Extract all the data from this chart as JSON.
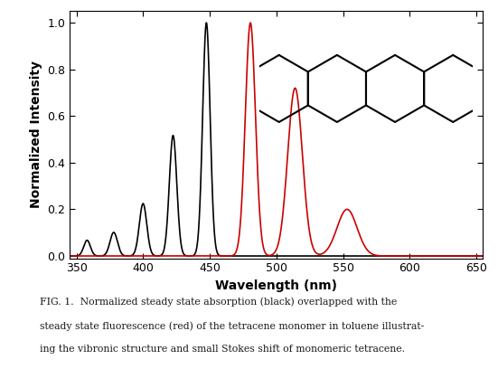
{
  "title": "",
  "xlabel": "Wavelength (nm)",
  "ylabel": "Normalized Intensity",
  "xlim": [
    345,
    655
  ],
  "ylim": [
    -0.01,
    1.05
  ],
  "xticks": [
    350,
    400,
    450,
    500,
    550,
    600,
    650
  ],
  "yticks": [
    0.0,
    0.2,
    0.4,
    0.6,
    0.8,
    1.0
  ],
  "black_color": "#000000",
  "red_color": "#cc0000",
  "figsize": [
    5.51,
    4.08
  ],
  "dpi": 100,
  "abs_peaks": [
    {
      "mu": 447.5,
      "sigma": 2.8,
      "amp": 0.89
    },
    {
      "mu": 422.5,
      "sigma": 2.8,
      "amp": 0.46
    },
    {
      "mu": 400.0,
      "sigma": 2.8,
      "amp": 0.2
    },
    {
      "mu": 378.0,
      "sigma": 2.8,
      "amp": 0.09
    },
    {
      "mu": 358.0,
      "sigma": 2.5,
      "amp": 0.06
    }
  ],
  "fl_peaks": [
    {
      "mu": 480.5,
      "sigma": 3.8,
      "amp": 1.0
    },
    {
      "mu": 514.0,
      "sigma": 5.5,
      "amp": 0.72
    },
    {
      "mu": 553.0,
      "sigma": 7.5,
      "amp": 0.2
    }
  ],
  "caption_line1": "FIG. 1.  Normalized steady state absorption (black) overlapped with the",
  "caption_line2": "steady state fluorescence (red) of the tetracene monomer in toluene illustrat-",
  "caption_line3": "ing the vibronic structure and small Stokes shift of monomeric tetracene."
}
